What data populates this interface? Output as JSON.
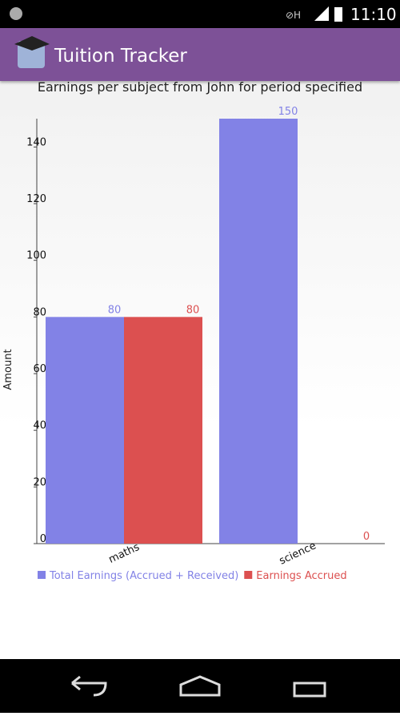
{
  "status_bar": {
    "time": "11:10"
  },
  "app_bar": {
    "title": "Tuition Tracker"
  },
  "chart_data": {
    "type": "bar",
    "title": "Earnings per subject from John for period specified",
    "y_label": "Amount",
    "categories": [
      "maths",
      "science"
    ],
    "series": [
      {
        "name": "Total Earnings (Accrued + Received)",
        "color": "#8282e6",
        "values": [
          80,
          150
        ]
      },
      {
        "name": "Earnings Accrued",
        "color": "#dc5050",
        "values": [
          80,
          0
        ]
      }
    ],
    "ylim": [
      0,
      150
    ],
    "yticks": [
      0,
      20,
      40,
      60,
      80,
      100,
      120,
      140
    ]
  }
}
